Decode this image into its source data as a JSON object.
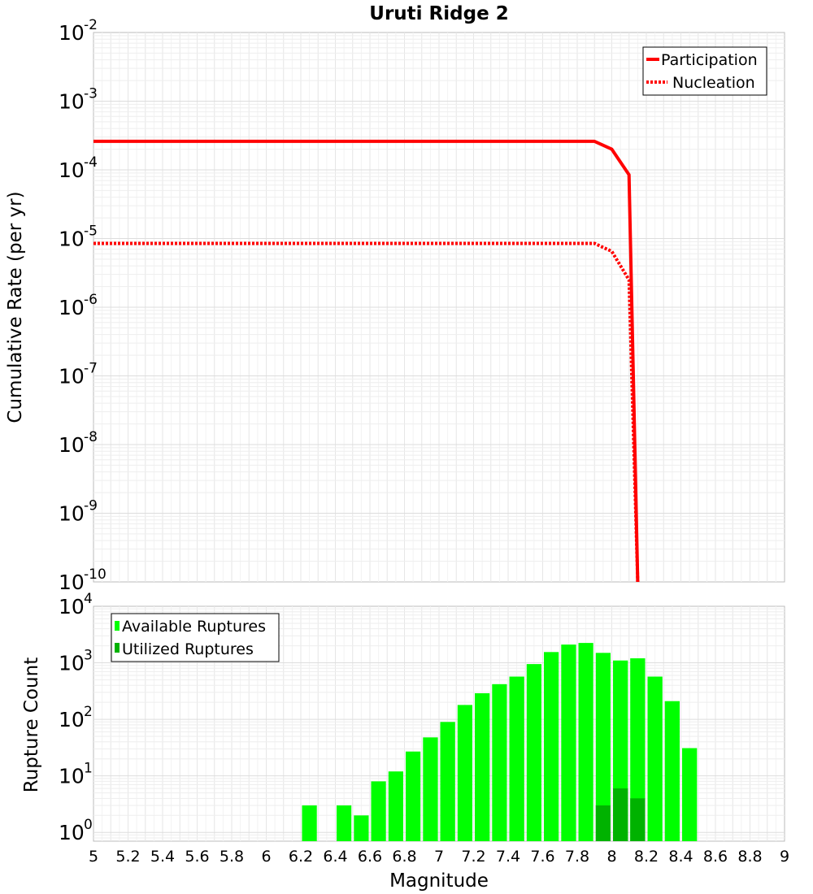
{
  "chart_data": [
    {
      "type": "line",
      "title": "Uruti Ridge 2",
      "xlabel": "",
      "ylabel": "Cumulative Rate (per yr)",
      "yscale": "log",
      "xlim": [
        5,
        9
      ],
      "ylim": [
        1e-10,
        0.01
      ],
      "y_tick_exponents": [
        -2,
        -3,
        -4,
        -5,
        -6,
        -7,
        -8,
        -9,
        -10
      ],
      "legend_position": "top-right",
      "series": [
        {
          "name": "Participation",
          "style": "solid",
          "color": "#ff0000",
          "x": [
            5.0,
            5.5,
            6.0,
            6.5,
            7.0,
            7.5,
            7.9,
            8.0,
            8.1,
            8.15
          ],
          "y": [
            0.00026,
            0.00026,
            0.00026,
            0.00026,
            0.00026,
            0.00026,
            0.00026,
            0.0002,
            8.5e-05,
            1e-10
          ]
        },
        {
          "name": "Nucleation",
          "style": "dotted",
          "color": "#ff0000",
          "x": [
            5.0,
            5.5,
            6.0,
            6.5,
            7.0,
            7.5,
            7.9,
            8.0,
            8.1,
            8.15
          ],
          "y": [
            8.5e-06,
            8.5e-06,
            8.5e-06,
            8.5e-06,
            8.5e-06,
            8.5e-06,
            8.5e-06,
            6.5e-06,
            2.5e-06,
            1e-10
          ]
        }
      ]
    },
    {
      "type": "bar",
      "title": "",
      "xlabel": "Magnitude",
      "ylabel": "Rupture Count",
      "yscale": "log",
      "xlim": [
        5,
        9
      ],
      "ylim": [
        0.7,
        10000
      ],
      "y_tick_exponents": [
        0,
        1,
        2,
        3,
        4
      ],
      "x_ticks": [
        "5",
        "5.2",
        "5.4",
        "5.6",
        "5.8",
        "6",
        "6.2",
        "6.4",
        "6.6",
        "6.8",
        "7",
        "7.2",
        "7.4",
        "7.6",
        "7.8",
        "8",
        "8.2",
        "8.4",
        "8.6",
        "8.8",
        "9"
      ],
      "legend_position": "top-left",
      "bin_width": 0.1,
      "series": [
        {
          "name": "Available Ruptures",
          "color": "#00ff00",
          "x": [
            6.25,
            6.45,
            6.55,
            6.65,
            6.75,
            6.85,
            6.95,
            7.05,
            7.15,
            7.25,
            7.35,
            7.45,
            7.55,
            7.65,
            7.75,
            7.85,
            7.95,
            8.05,
            8.15,
            8.25,
            8.35,
            8.45
          ],
          "values": [
            3,
            3,
            2,
            8,
            12,
            27,
            48,
            90,
            180,
            290,
            420,
            570,
            950,
            1550,
            2100,
            2250,
            1500,
            1100,
            1200,
            570,
            210,
            31
          ]
        },
        {
          "name": "Utilized Ruptures",
          "color": "#00b200",
          "x": [
            7.95,
            8.05,
            8.15
          ],
          "values": [
            3,
            6,
            4
          ]
        }
      ]
    }
  ]
}
